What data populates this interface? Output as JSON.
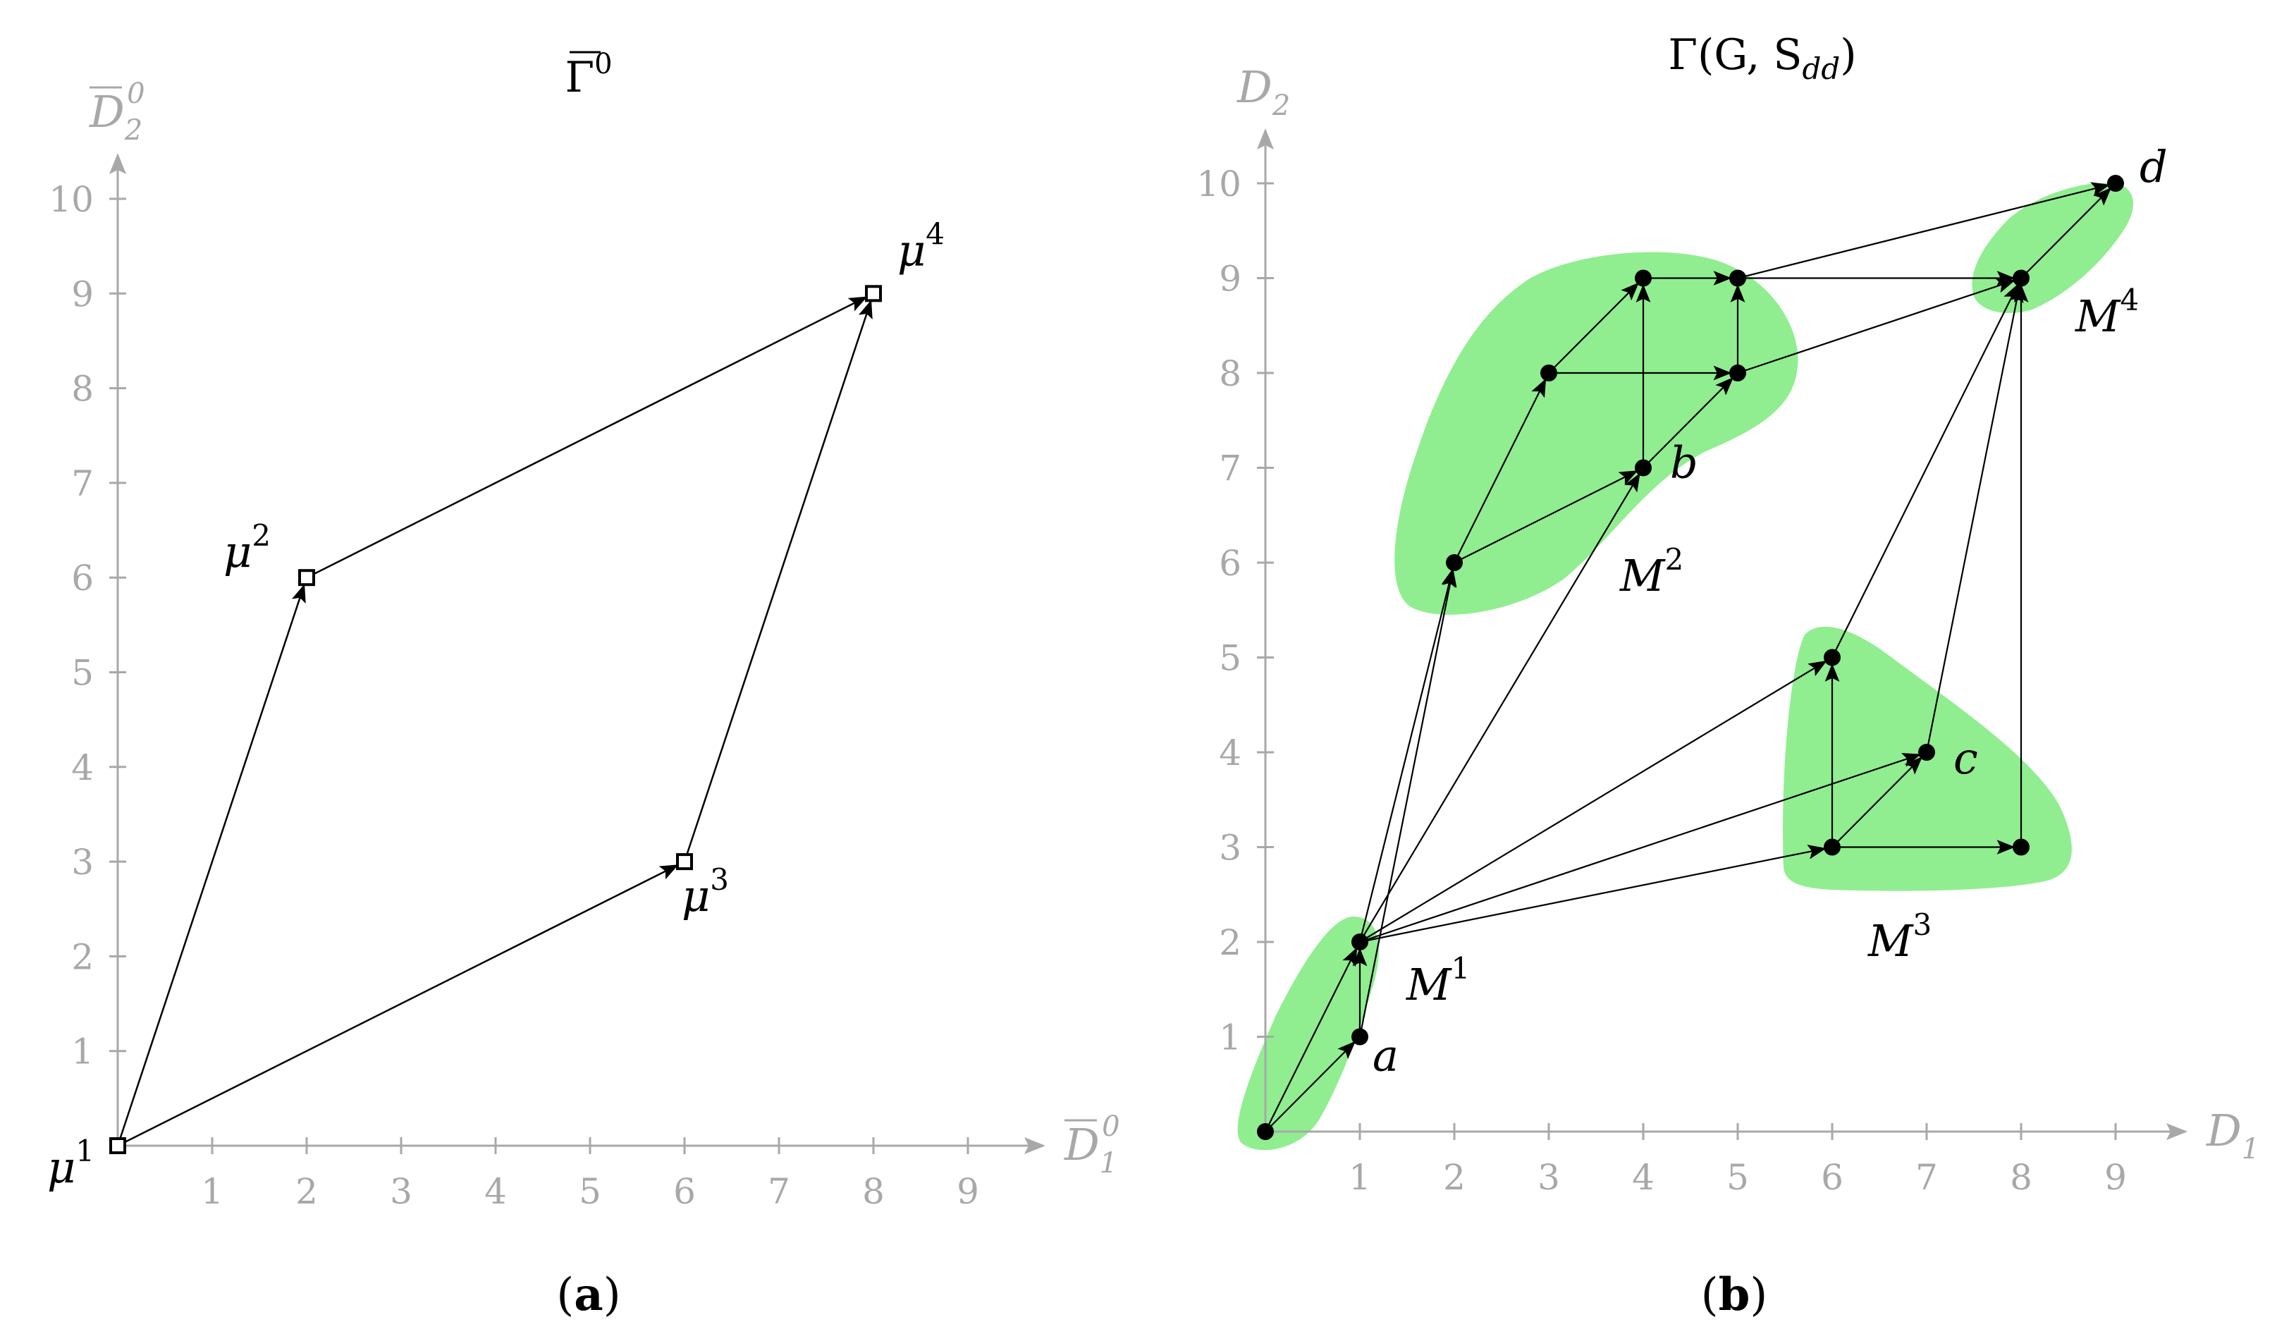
{
  "panel_a": {
    "title": "Γ",
    "title_sup": "0",
    "caption_letter": "a",
    "x_axis": {
      "label": "D",
      "sub": "1",
      "sup": "0",
      "ticks": [
        "1",
        "2",
        "3",
        "4",
        "5",
        "6",
        "7",
        "8",
        "9"
      ]
    },
    "y_axis": {
      "label": "D",
      "sub": "2",
      "sup": "0",
      "ticks": [
        "1",
        "2",
        "3",
        "4",
        "5",
        "6",
        "7",
        "8",
        "9",
        "10"
      ]
    },
    "nodes": [
      {
        "id": "mu1",
        "base": "μ",
        "sup": "1",
        "x": 0,
        "y": 0
      },
      {
        "id": "mu2",
        "base": "μ",
        "sup": "2",
        "x": 2,
        "y": 6
      },
      {
        "id": "mu3",
        "base": "μ",
        "sup": "3",
        "x": 6,
        "y": 3
      },
      {
        "id": "mu4",
        "base": "μ",
        "sup": "4",
        "x": 8,
        "y": 9
      }
    ],
    "edges": [
      [
        "mu1",
        "mu2"
      ],
      [
        "mu1",
        "mu3"
      ],
      [
        "mu2",
        "mu4"
      ],
      [
        "mu3",
        "mu4"
      ]
    ]
  },
  "panel_b": {
    "title": "Γ(G, S",
    "title_sub": "dd",
    "title_close": ")",
    "caption_letter": "b",
    "highlight_color": "#90ee90",
    "x_axis": {
      "label": "D",
      "sub": "1",
      "ticks": [
        "1",
        "2",
        "3",
        "4",
        "5",
        "6",
        "7",
        "8",
        "9"
      ]
    },
    "y_axis": {
      "label": "D",
      "sub": "2",
      "ticks": [
        "1",
        "2",
        "3",
        "4",
        "5",
        "6",
        "7",
        "8",
        "9",
        "10"
      ]
    },
    "regions": [
      {
        "id": "M1",
        "base": "M",
        "sup": "1"
      },
      {
        "id": "M2",
        "base": "M",
        "sup": "2"
      },
      {
        "id": "M3",
        "base": "M",
        "sup": "3"
      },
      {
        "id": "M4",
        "base": "M",
        "sup": "4"
      }
    ],
    "nodes": [
      {
        "id": "n00",
        "x": 0,
        "y": 0,
        "label": ""
      },
      {
        "id": "a",
        "x": 1,
        "y": 1,
        "label": "a"
      },
      {
        "id": "n12",
        "x": 1,
        "y": 2,
        "label": ""
      },
      {
        "id": "n26",
        "x": 2,
        "y": 6,
        "label": ""
      },
      {
        "id": "n38",
        "x": 3,
        "y": 8,
        "label": ""
      },
      {
        "id": "b",
        "x": 4,
        "y": 7,
        "label": "b"
      },
      {
        "id": "n49",
        "x": 4,
        "y": 9,
        "label": ""
      },
      {
        "id": "n58",
        "x": 5,
        "y": 8,
        "label": ""
      },
      {
        "id": "n59",
        "x": 5,
        "y": 9,
        "label": ""
      },
      {
        "id": "n63",
        "x": 6,
        "y": 3,
        "label": ""
      },
      {
        "id": "n65",
        "x": 6,
        "y": 5,
        "label": ""
      },
      {
        "id": "c",
        "x": 7,
        "y": 4,
        "label": "c"
      },
      {
        "id": "n83",
        "x": 8,
        "y": 3,
        "label": ""
      },
      {
        "id": "n89",
        "x": 8,
        "y": 9,
        "label": ""
      },
      {
        "id": "d",
        "x": 9,
        "y": 10,
        "label": "d"
      }
    ],
    "edges": [
      [
        "n00",
        "a"
      ],
      [
        "n00",
        "n12"
      ],
      [
        "a",
        "n12"
      ],
      [
        "a",
        "n26"
      ],
      [
        "n12",
        "n26"
      ],
      [
        "n12",
        "b"
      ],
      [
        "n12",
        "n65"
      ],
      [
        "n12",
        "c"
      ],
      [
        "n12",
        "n63"
      ],
      [
        "n26",
        "n38"
      ],
      [
        "n26",
        "b"
      ],
      [
        "n38",
        "n49"
      ],
      [
        "n38",
        "n58"
      ],
      [
        "b",
        "n49"
      ],
      [
        "b",
        "n58"
      ],
      [
        "n58",
        "n59"
      ],
      [
        "n49",
        "n59"
      ],
      [
        "n59",
        "n89"
      ],
      [
        "n58",
        "n89"
      ],
      [
        "n59",
        "d"
      ],
      [
        "n89",
        "d"
      ],
      [
        "n63",
        "n65"
      ],
      [
        "n63",
        "c"
      ],
      [
        "n63",
        "n83"
      ],
      [
        "n65",
        "n89"
      ],
      [
        "c",
        "n89"
      ],
      [
        "n83",
        "n89"
      ]
    ]
  }
}
